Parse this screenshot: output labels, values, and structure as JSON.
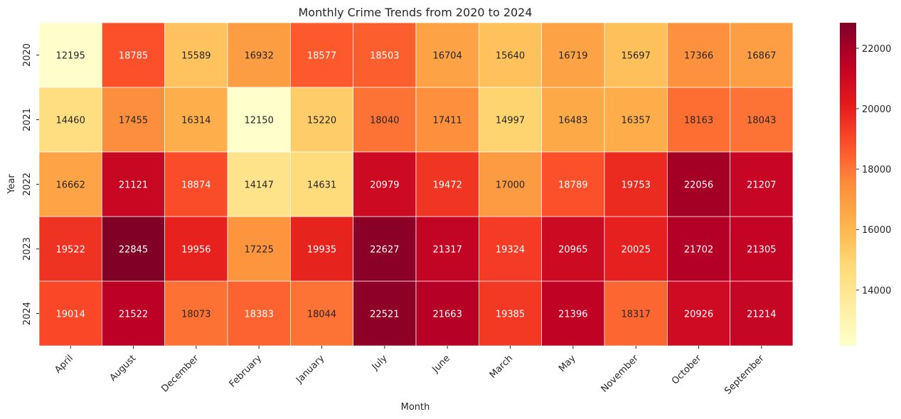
{
  "chart_data": {
    "type": "heatmap",
    "title": "Monthly Crime Trends from 2020 to 2024",
    "xlabel": "Month",
    "ylabel": "Year",
    "x_categories": [
      "April",
      "August",
      "December",
      "February",
      "January",
      "July",
      "June",
      "March",
      "May",
      "November",
      "October",
      "September"
    ],
    "y_categories": [
      "2020",
      "2021",
      "2022",
      "2023",
      "2024"
    ],
    "values": [
      [
        12195,
        18785,
        15589,
        16932,
        18577,
        18503,
        16704,
        15640,
        16719,
        15697,
        17366,
        16867
      ],
      [
        14460,
        17455,
        16314,
        12150,
        15220,
        18040,
        17411,
        14997,
        16483,
        16357,
        18163,
        18043
      ],
      [
        16662,
        21121,
        18874,
        14147,
        14631,
        20979,
        19472,
        17000,
        18789,
        19753,
        22056,
        21207
      ],
      [
        19522,
        22845,
        19956,
        17225,
        19935,
        22627,
        21317,
        19324,
        20965,
        20025,
        21702,
        21305
      ],
      [
        19014,
        21522,
        18073,
        18383,
        18044,
        22521,
        21663,
        19385,
        21396,
        18317,
        20926,
        21214
      ]
    ],
    "colormap": "YlOrRd",
    "vmin": 12150,
    "vmax": 22845,
    "colorbar_ticks": [
      14000,
      16000,
      18000,
      20000,
      22000
    ],
    "annotations": true,
    "grid": false
  }
}
